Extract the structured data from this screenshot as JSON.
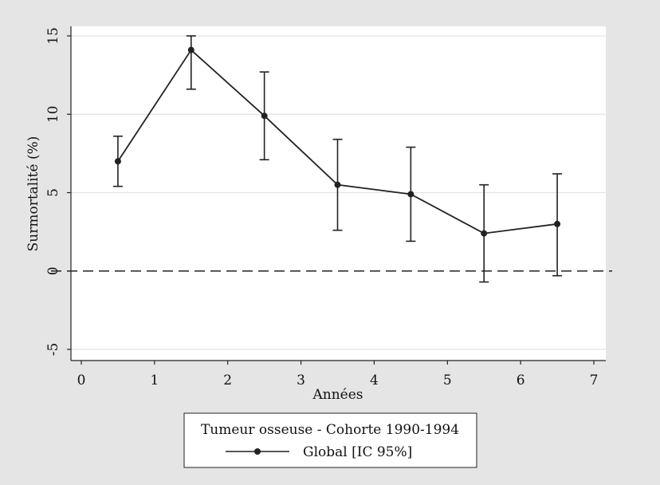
{
  "chart_data": {
    "type": "line",
    "xlabel": "Années",
    "ylabel": "Surmortalité (%)",
    "xlim": [
      0,
      7
    ],
    "ylim": [
      -5,
      15
    ],
    "x_ticks": [
      0,
      1,
      2,
      3,
      4,
      5,
      6,
      7
    ],
    "y_ticks": [
      -5,
      0,
      5,
      10,
      15
    ],
    "grid": true,
    "reference_line": {
      "y": 0,
      "style": "dashed"
    },
    "series": [
      {
        "name": "Global [IC 95%]",
        "color": "#222222",
        "x": [
          0.5,
          1.5,
          2.5,
          3.5,
          4.5,
          5.5,
          6.5
        ],
        "y": [
          7.0,
          14.1,
          9.9,
          5.5,
          4.9,
          2.4,
          3.0
        ],
        "ci_low": [
          5.4,
          11.6,
          7.1,
          2.6,
          1.9,
          -0.7,
          -0.3
        ],
        "ci_high": [
          8.6,
          15.0,
          12.7,
          8.4,
          7.9,
          5.5,
          6.2
        ]
      }
    ],
    "legend": {
      "title": "Tumeur osseuse - Cohorte 1990-1994",
      "placement": "bottom"
    }
  }
}
